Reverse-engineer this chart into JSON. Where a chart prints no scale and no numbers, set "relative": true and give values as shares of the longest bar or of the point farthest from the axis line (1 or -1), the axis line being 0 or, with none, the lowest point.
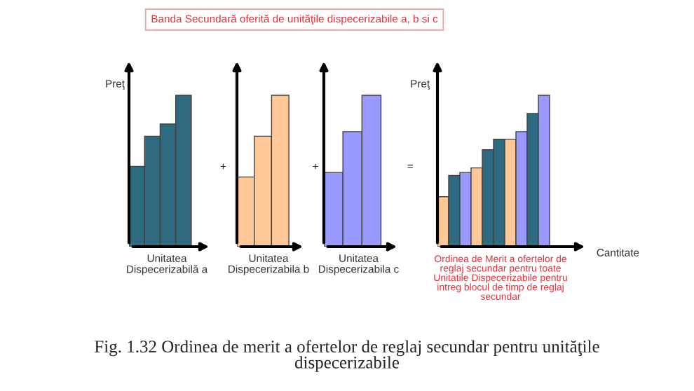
{
  "chart_data": [
    {
      "type": "bar",
      "relative": true,
      "ylabel": "Preţ",
      "xlabel": "Unitatea\nDispecerizabilă a",
      "categories": [
        null,
        null,
        null,
        null
      ],
      "values": [
        0.53,
        0.73,
        0.81,
        1.0
      ],
      "color": "#2e6b80",
      "annotations": [
        "Banda Secundară oferită de unităţile dispecerizabile a, b si c",
        "Fig. 1.32 Ordinea de merit a ofertelor de reglaj secundar pentru unităţile\ndispecerizabile",
        "+"
      ]
    },
    {
      "type": "bar",
      "relative": true,
      "xlabel": "Unitatea\nDispecerizabila b",
      "categories": [
        null,
        null,
        null
      ],
      "values": [
        0.46,
        0.73,
        1.0
      ],
      "color": "#ffc896",
      "annotations": [
        "+"
      ]
    },
    {
      "type": "bar",
      "relative": true,
      "xlabel": "Unitatea\nDispecerizabila c",
      "categories": [
        null,
        null,
        null
      ],
      "values": [
        0.49,
        0.76,
        1.0
      ],
      "color": "#9999ff",
      "annotations": [
        "="
      ]
    },
    {
      "type": "bar",
      "relative": true,
      "ylabel": "Preţ",
      "xlabel": "Cantitate",
      "categories": [
        null,
        null,
        null,
        null,
        null,
        null,
        null,
        null,
        null,
        null
      ],
      "values": [
        0.33,
        0.47,
        0.49,
        0.52,
        0.64,
        0.71,
        0.71,
        0.76,
        0.88,
        1.0
      ],
      "colors": [
        "#ffc896",
        "#2e6b80",
        "#9999ff",
        "#ffc896",
        "#2e6b80",
        "#2e6b80",
        "#ffc896",
        "#9999ff",
        "#2e6b80",
        "#9999ff"
      ],
      "annotations": [
        "Ordinea de Merit a ofertelor de\nreglaj secundar pentru toate\nUnitatile Dispecerizabile pentru\nintreg blocul de timp de reglaj\nsecundar"
      ]
    }
  ]
}
